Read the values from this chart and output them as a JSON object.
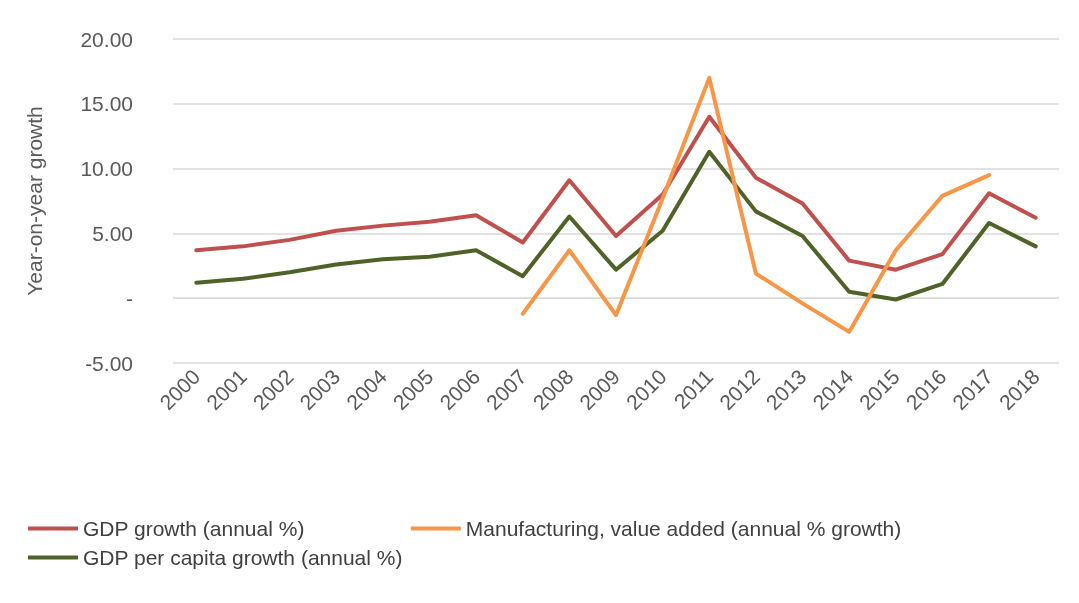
{
  "chart_data": {
    "type": "line",
    "ylabel": "Year-on-year growth",
    "categories": [
      "2000",
      "2001",
      "2002",
      "2003",
      "2004",
      "2005",
      "2006",
      "2007",
      "2008",
      "2009",
      "2010",
      "2011",
      "2012",
      "2013",
      "2014",
      "2015",
      "2016",
      "2017",
      "2018"
    ],
    "series": [
      {
        "name": "GDP growth (annual %)",
        "color": "#c0504d",
        "values": [
          3.7,
          4.0,
          4.5,
          5.2,
          5.6,
          5.9,
          6.4,
          4.3,
          9.1,
          4.8,
          8.0,
          14.0,
          9.3,
          7.3,
          2.9,
          2.2,
          3.4,
          8.1,
          6.2
        ]
      },
      {
        "name": "GDP per capita growth (annual %)",
        "color": "#4f6228",
        "values": [
          1.2,
          1.5,
          2.0,
          2.6,
          3.0,
          3.2,
          3.7,
          1.7,
          6.3,
          2.2,
          5.2,
          11.3,
          6.7,
          4.8,
          0.5,
          -0.1,
          1.1,
          5.8,
          4.0
        ]
      },
      {
        "name": "Manufacturing, value added (annual % growth)",
        "color": "#f79646",
        "values": [
          null,
          null,
          null,
          null,
          null,
          null,
          null,
          -1.2,
          3.7,
          -1.3,
          7.7,
          17.0,
          1.9,
          -0.4,
          -2.6,
          3.7,
          7.9,
          9.5,
          null
        ]
      }
    ],
    "ylim": [
      -5,
      20
    ],
    "yticks": [
      {
        "value": -5,
        "label": "-5.00"
      },
      {
        "value": 0,
        "label": "-"
      },
      {
        "value": 5,
        "label": "5.00"
      },
      {
        "value": 10,
        "label": "10.00"
      },
      {
        "value": 15,
        "label": "15.00"
      },
      {
        "value": 20,
        "label": "20.00"
      }
    ],
    "grid": "y",
    "legend": "bottom",
    "marker": "none",
    "line_style": "solid"
  }
}
